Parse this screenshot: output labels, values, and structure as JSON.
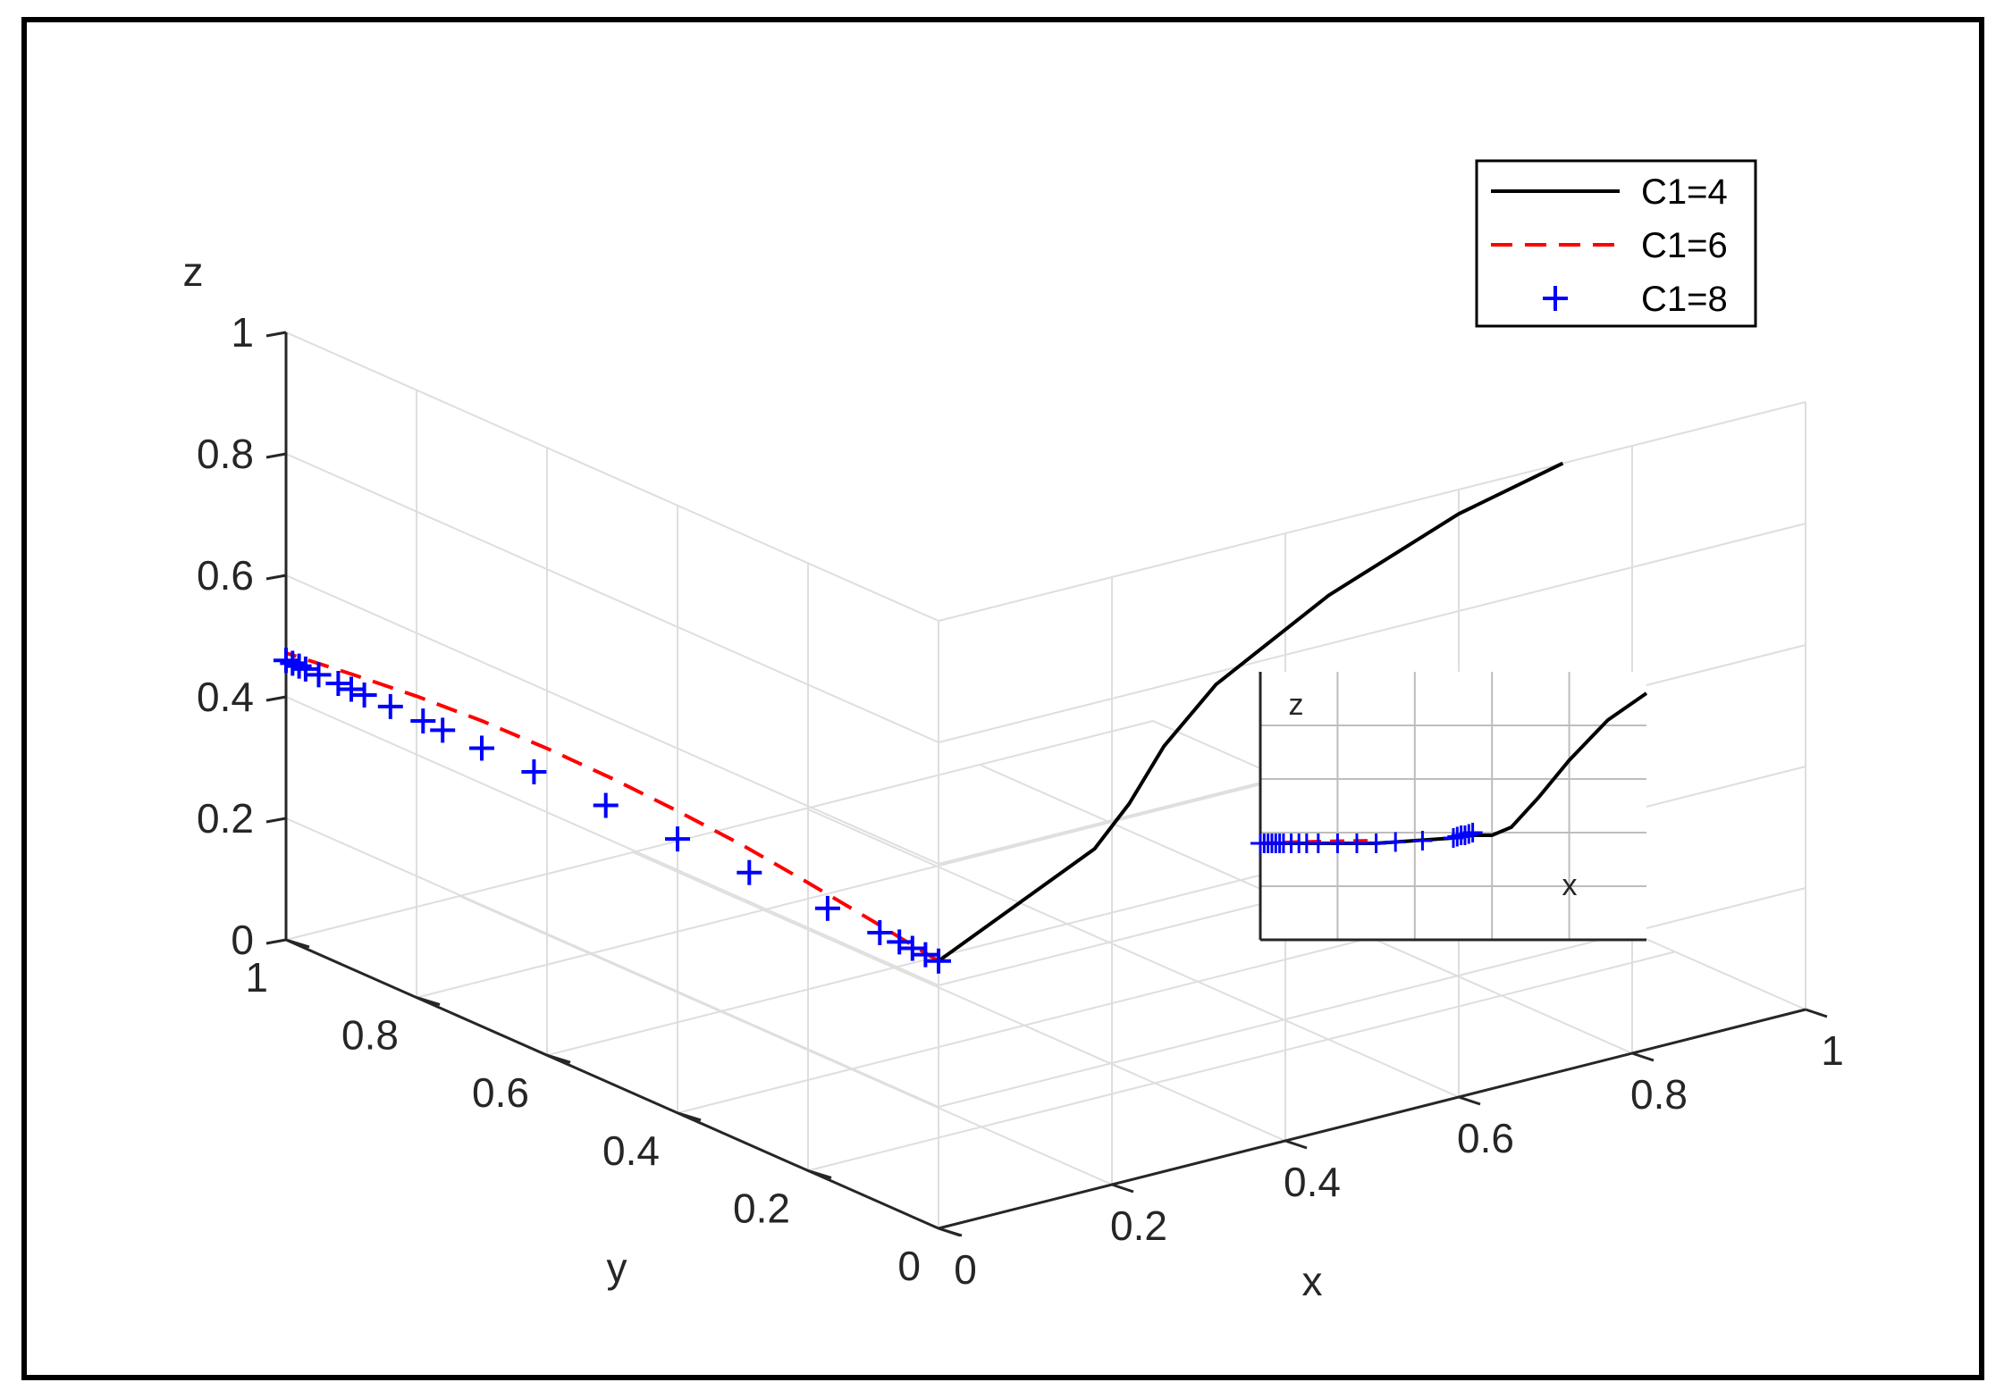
{
  "chart_data": {
    "type": "line",
    "view": "3d",
    "xlabel": "x",
    "ylabel": "y",
    "zlabel": "z",
    "xlim": [
      0,
      1
    ],
    "ylim": [
      0,
      1
    ],
    "zlim": [
      0,
      1
    ],
    "x_ticks": [
      "0",
      "0.2",
      "0.4",
      "0.6",
      "0.8",
      "1"
    ],
    "y_ticks": [
      "0",
      "0.2",
      "0.4",
      "0.6",
      "0.8",
      "1"
    ],
    "z_ticks": [
      "0",
      "0.2",
      "0.4",
      "0.6",
      "0.8",
      "1"
    ],
    "grid": true,
    "legend_position": "top-right",
    "series": [
      {
        "name": "C1=4",
        "style": "solid",
        "color": "#000000",
        "points": [
          [
            0,
            0,
            0.44
          ],
          [
            0.06,
            0,
            0.48
          ],
          [
            0.12,
            0,
            0.52
          ],
          [
            0.18,
            0,
            0.56
          ],
          [
            0.22,
            0,
            0.62
          ],
          [
            0.26,
            0,
            0.7
          ],
          [
            0.32,
            0,
            0.78
          ],
          [
            0.45,
            0,
            0.88
          ],
          [
            0.6,
            0,
            0.96
          ],
          [
            0.72,
            0,
            1.0
          ]
        ]
      },
      {
        "name": "C1=6",
        "style": "dashed",
        "color": "#ff0000",
        "points": [
          [
            0,
            0,
            0.44
          ],
          [
            0,
            0.1,
            0.458
          ],
          [
            0,
            0.2,
            0.474
          ],
          [
            0,
            0.3,
            0.488
          ],
          [
            0,
            0.4,
            0.497
          ],
          [
            0,
            0.5,
            0.503
          ],
          [
            0,
            0.6,
            0.505
          ],
          [
            0,
            0.7,
            0.503
          ],
          [
            0,
            0.8,
            0.496
          ],
          [
            0,
            0.9,
            0.485
          ],
          [
            0,
            1,
            0.472
          ]
        ]
      },
      {
        "name": "C1=8",
        "style": "plus-markers",
        "color": "#0000ff",
        "points": [
          [
            0,
            0,
            0.44
          ],
          [
            0,
            0.02,
            0.441
          ],
          [
            0,
            0.04,
            0.442
          ],
          [
            0,
            0.06,
            0.443
          ],
          [
            0,
            0.09,
            0.444
          ],
          [
            0,
            0.17,
            0.446
          ],
          [
            0,
            0.29,
            0.448
          ],
          [
            0,
            0.4,
            0.451
          ],
          [
            0,
            0.51,
            0.454
          ],
          [
            0,
            0.62,
            0.457
          ],
          [
            0,
            0.7,
            0.458
          ],
          [
            0,
            0.76,
            0.459
          ],
          [
            0,
            0.79,
            0.46
          ],
          [
            0,
            0.84,
            0.46
          ],
          [
            0,
            0.88,
            0.46
          ],
          [
            0,
            0.9,
            0.46
          ],
          [
            0,
            0.92,
            0.46
          ],
          [
            0,
            0.95,
            0.46
          ],
          [
            0,
            0.97,
            0.46
          ],
          [
            0,
            0.98,
            0.46
          ],
          [
            0,
            0.99,
            0.46
          ],
          [
            0,
            1,
            0.46
          ]
        ]
      }
    ],
    "inset": {
      "xlabel": "x",
      "zlabel": "z",
      "series": [
        {
          "name": "C1=4",
          "x": [
            0,
            0.1,
            0.2,
            0.3,
            0.4,
            0.5,
            0.55,
            0.6,
            0.65,
            0.72,
            0.8,
            0.9,
            1.0
          ],
          "z": [
            0.36,
            0.36,
            0.36,
            0.36,
            0.37,
            0.38,
            0.39,
            0.39,
            0.42,
            0.53,
            0.67,
            0.82,
            0.92
          ]
        },
        {
          "name": "C1=6",
          "x": [
            0,
            0.1,
            0.2,
            0.3
          ],
          "z": [
            0.36,
            0.365,
            0.368,
            0.37
          ]
        },
        {
          "name": "C1=8",
          "x": [
            0,
            0.01,
            0.02,
            0.03,
            0.04,
            0.05,
            0.06,
            0.08,
            0.1,
            0.12,
            0.15,
            0.2,
            0.25,
            0.3,
            0.35,
            0.42,
            0.5,
            0.51,
            0.52,
            0.53,
            0.54,
            0.55
          ],
          "z": [
            0.36,
            0.36,
            0.36,
            0.36,
            0.36,
            0.36,
            0.36,
            0.36,
            0.36,
            0.36,
            0.36,
            0.36,
            0.36,
            0.36,
            0.365,
            0.37,
            0.38,
            0.385,
            0.39,
            0.39,
            0.395,
            0.4
          ]
        }
      ]
    }
  }
}
